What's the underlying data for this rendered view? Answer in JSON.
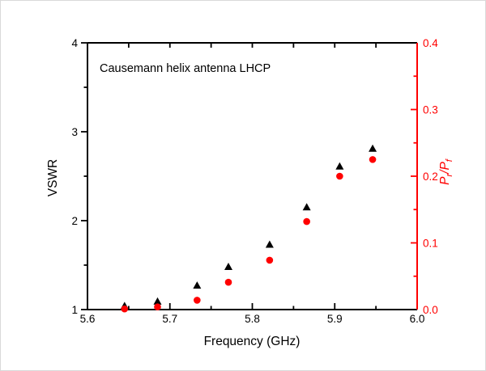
{
  "figure": {
    "background": "#ffffff",
    "frame_color": "#d9d9d9"
  },
  "chart_data": {
    "type": "scatter",
    "annotation": "Causemann helix antenna LHCP",
    "xlabel": "Frequency (GHz)",
    "grid": false,
    "legend": "none",
    "x_axis": {
      "min": 5.6,
      "max": 6.0,
      "major_ticks": [
        5.6,
        5.7,
        5.8,
        5.9,
        6.0
      ],
      "tick_labels": [
        "5.6",
        "5.7",
        "5.8",
        "5.9",
        "6.0"
      ],
      "minor_ticks": [
        5.65,
        5.75,
        5.85,
        5.95
      ],
      "color": "#000000"
    },
    "left_axis": {
      "label": "VSWR",
      "min": 1,
      "max": 4,
      "major_ticks": [
        1,
        2,
        3,
        4
      ],
      "tick_labels": [
        "1",
        "2",
        "3",
        "4"
      ],
      "minor_ticks": [
        1.5,
        2.5,
        3.5
      ],
      "color": "#000000"
    },
    "right_axis": {
      "label_parts": {
        "base1": "P",
        "sub1": "r",
        "sep": "/",
        "base2": "P",
        "sub2": "f"
      },
      "min": 0,
      "max": 0.4,
      "major_ticks": [
        0,
        0.1,
        0.2,
        0.3,
        0.4
      ],
      "tick_labels": [
        "0.0",
        "0.1",
        "0.2",
        "0.3",
        "0.4"
      ],
      "minor_ticks": [
        0.05,
        0.15,
        0.25,
        0.35
      ],
      "color": "#ff0000"
    },
    "series": [
      {
        "name": "VSWR",
        "axis": "left",
        "marker": "triangle",
        "color": "#000000",
        "x": [
          5.645,
          5.685,
          5.733,
          5.771,
          5.821,
          5.866,
          5.906,
          5.946
        ],
        "y": [
          1.04,
          1.09,
          1.27,
          1.48,
          1.73,
          2.15,
          2.61,
          2.81
        ]
      },
      {
        "name": "Pr/Pf",
        "axis": "right",
        "marker": "circle",
        "color": "#ff0000",
        "x": [
          5.645,
          5.685,
          5.733,
          5.771,
          5.821,
          5.866,
          5.906,
          5.946
        ],
        "y": [
          0.001,
          0.004,
          0.014,
          0.041,
          0.074,
          0.132,
          0.2,
          0.225
        ]
      }
    ]
  }
}
